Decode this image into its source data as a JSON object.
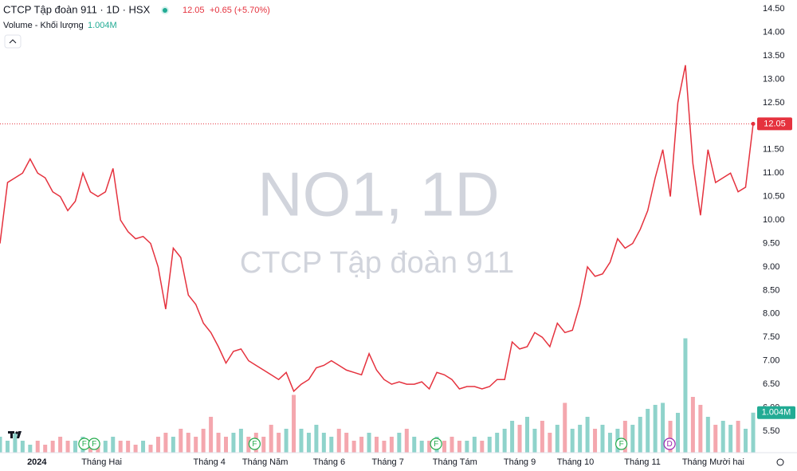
{
  "header": {
    "title": "CTCP Tập đoàn 911 · 1D · HSX",
    "change": "+0.65 (+5.70%)",
    "volume_label": "Volume - Khối lượng"
  },
  "watermark": {
    "symbol": "NO1, 1D",
    "name": "CTCP Tập đoàn 911"
  },
  "chart_data": {
    "type": "line",
    "xlim": [
      0,
      100
    ],
    "xticks": [
      {
        "value": 4.9,
        "label": "2024"
      },
      {
        "value": 13.5,
        "label": "Tháng Hai"
      },
      {
        "value": 27.8,
        "label": "Tháng 4"
      },
      {
        "value": 35.2,
        "label": "Tháng Năm"
      },
      {
        "value": 43.7,
        "label": "Tháng 6"
      },
      {
        "value": 51.5,
        "label": "Tháng 7"
      },
      {
        "value": 60.4,
        "label": "Tháng Tám"
      },
      {
        "value": 69,
        "label": "Tháng 9"
      },
      {
        "value": 76.4,
        "label": "Tháng 10"
      },
      {
        "value": 85.3,
        "label": "Tháng 11"
      },
      {
        "value": 94.7,
        "label": "Tháng Mười hai"
      }
    ],
    "ylim": [
      5.04,
      14.69
    ],
    "yticks": [
      {
        "value": 5.5,
        "label": "5.50"
      },
      {
        "value": 6,
        "label": "6.00"
      },
      {
        "value": 6.5,
        "label": "6.50"
      },
      {
        "value": 7,
        "label": "7.00"
      },
      {
        "value": 7.5,
        "label": "7.50"
      },
      {
        "value": 8,
        "label": "8.00"
      },
      {
        "value": 8.5,
        "label": "8.50"
      },
      {
        "value": 9,
        "label": "9.00"
      },
      {
        "value": 9.5,
        "label": "9.50"
      },
      {
        "value": 10,
        "label": "10.00"
      },
      {
        "value": 10.5,
        "label": "10.50"
      },
      {
        "value": 11,
        "label": "11.00"
      },
      {
        "value": 11.5,
        "label": "11.50"
      },
      {
        "value": 12,
        "label": "12.00"
      },
      {
        "value": 12.5,
        "label": "12.50"
      },
      {
        "value": 13,
        "label": "13.00"
      },
      {
        "value": 13.5,
        "label": "13.50"
      },
      {
        "value": 14,
        "label": "14.00"
      },
      {
        "value": 14.5,
        "label": "14.50"
      }
    ],
    "y2lim": [
      0,
      11.36
    ],
    "series": [
      {
        "name": "Price",
        "color": "#e5323e",
        "values": [
          9.5,
          10.8,
          10.9,
          11.0,
          11.3,
          11.0,
          10.9,
          10.6,
          10.5,
          10.2,
          10.4,
          11.0,
          10.6,
          10.5,
          10.6,
          11.1,
          10.0,
          9.75,
          9.6,
          9.65,
          9.5,
          9.0,
          8.1,
          9.4,
          9.2,
          8.4,
          8.2,
          7.8,
          7.6,
          7.3,
          6.95,
          7.2,
          7.25,
          7.0,
          6.9,
          6.8,
          6.7,
          6.6,
          6.75,
          6.35,
          6.5,
          6.6,
          6.85,
          6.9,
          7.0,
          6.9,
          6.8,
          6.75,
          6.7,
          7.15,
          6.8,
          6.6,
          6.5,
          6.55,
          6.5,
          6.5,
          6.55,
          6.4,
          6.75,
          6.7,
          6.6,
          6.4,
          6.45,
          6.45,
          6.4,
          6.45,
          6.6,
          6.6,
          7.4,
          7.25,
          7.3,
          7.6,
          7.5,
          7.3,
          7.8,
          7.6,
          7.65,
          8.2,
          9.0,
          8.8,
          8.85,
          9.1,
          9.6,
          9.4,
          9.5,
          9.8,
          10.2,
          10.9,
          11.5,
          10.5,
          12.5,
          13.3,
          11.2,
          10.1,
          11.5,
          10.8,
          10.9,
          11.0,
          10.6,
          10.7,
          12.05
        ]
      },
      {
        "name": "Volume",
        "axis": "y2",
        "up_color": "#8fd3cb",
        "down_color": "#f4a7ae",
        "last_label": "1.004M",
        "values": [
          0.4,
          0.3,
          0.5,
          0.3,
          0.2,
          0.3,
          0.2,
          0.3,
          0.4,
          0.3,
          0.3,
          0.4,
          0.3,
          0.2,
          0.3,
          0.4,
          0.3,
          0.3,
          0.2,
          0.3,
          0.2,
          0.4,
          0.5,
          0.4,
          0.6,
          0.5,
          0.4,
          0.6,
          0.9,
          0.5,
          0.4,
          0.5,
          0.6,
          0.4,
          0.5,
          0.4,
          0.7,
          0.5,
          0.6,
          1.45,
          0.6,
          0.5,
          0.7,
          0.5,
          0.4,
          0.6,
          0.5,
          0.3,
          0.4,
          0.5,
          0.4,
          0.3,
          0.4,
          0.5,
          0.6,
          0.4,
          0.3,
          0.3,
          0.4,
          0.3,
          0.4,
          0.3,
          0.3,
          0.4,
          0.3,
          0.4,
          0.5,
          0.6,
          0.8,
          0.7,
          0.9,
          0.6,
          0.8,
          0.5,
          0.7,
          1.25,
          0.6,
          0.7,
          0.9,
          0.6,
          0.7,
          0.5,
          0.6,
          0.8,
          0.7,
          0.9,
          1.1,
          1.2,
          1.25,
          0.8,
          1.0,
          2.87,
          1.4,
          1.2,
          0.9,
          0.7,
          0.8,
          0.7,
          0.8,
          0.6,
          1.004
        ]
      }
    ],
    "events": [
      {
        "x": 11.2,
        "label": "F",
        "color": "#22ab4a"
      },
      {
        "x": 12.5,
        "label": "F",
        "color": "#22ab4a"
      },
      {
        "x": 33.8,
        "label": "F",
        "color": "#22ab4a"
      },
      {
        "x": 57.9,
        "label": "F",
        "color": "#22ab4a"
      },
      {
        "x": 82.5,
        "label": "F",
        "color": "#22ab4a"
      },
      {
        "x": 88.9,
        "label": "D",
        "color": "#9c27b0"
      }
    ]
  }
}
